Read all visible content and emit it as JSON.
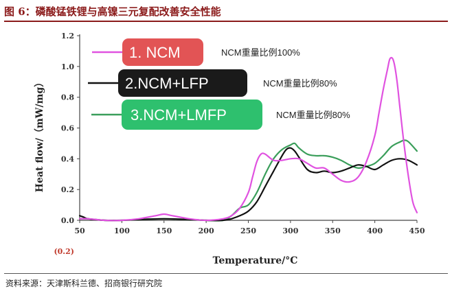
{
  "figure_title": "图 6：磷酸锰铁锂与高镍三元复配改善安全性能",
  "source": "资料来源：天津斯科兰德、招商银行研究院",
  "colors": {
    "title": "#8b1a1a",
    "series1": "#e052e0",
    "series2": "#111111",
    "series3": "#3a9e5a",
    "badge1": "#e25455",
    "badge2": "#1a1a1a",
    "badge3": "#2ec06e",
    "neg_tick": "#c0392b"
  },
  "chart_data": {
    "type": "line",
    "title": "",
    "xlabel": "Temperature/°C",
    "ylabel": "Heat flow/（mW/mg）",
    "xlim": [
      50,
      450
    ],
    "ylim": [
      0,
      1.2
    ],
    "x_ticks": [
      "50",
      "100",
      "150",
      "200",
      "250",
      "300",
      "350",
      "400",
      "450"
    ],
    "y_ticks": [
      "0.0",
      "0.2",
      "0.4",
      "0.6",
      "0.8",
      "1.0",
      "1.2"
    ],
    "extra_y_tick": "(0.2)",
    "series": [
      {
        "name": "1. NCM",
        "ratio_label": "NCM重量比例100%",
        "x": [
          50,
          60,
          80,
          100,
          120,
          140,
          150,
          160,
          180,
          200,
          220,
          230,
          240,
          250,
          255,
          260,
          265,
          270,
          280,
          290,
          300,
          310,
          320,
          330,
          340,
          350,
          360,
          370,
          380,
          390,
          400,
          405,
          410,
          415,
          418,
          422,
          426,
          430,
          435,
          440,
          445,
          450
        ],
        "values": [
          0.01,
          0.01,
          0.0,
          0.0,
          0.01,
          0.03,
          0.04,
          0.03,
          0.01,
          0.0,
          0.01,
          0.03,
          0.08,
          0.18,
          0.28,
          0.38,
          0.43,
          0.43,
          0.39,
          0.39,
          0.4,
          0.4,
          0.37,
          0.34,
          0.34,
          0.3,
          0.26,
          0.25,
          0.28,
          0.38,
          0.55,
          0.7,
          0.85,
          0.98,
          1.05,
          1.04,
          0.92,
          0.72,
          0.48,
          0.28,
          0.12,
          0.05
        ]
      },
      {
        "name": "2.NCM+LFP",
        "ratio_label": "NCM重量比例80%",
        "x": [
          50,
          55,
          60,
          80,
          100,
          150,
          200,
          220,
          230,
          240,
          250,
          260,
          270,
          280,
          290,
          295,
          300,
          305,
          310,
          320,
          330,
          340,
          350,
          360,
          370,
          380,
          390,
          400,
          410,
          420,
          430,
          440,
          450
        ],
        "values": [
          0.03,
          0.02,
          0.01,
          0.0,
          0.0,
          0.01,
          0.0,
          0.0,
          0.01,
          0.03,
          0.06,
          0.12,
          0.22,
          0.32,
          0.42,
          0.46,
          0.47,
          0.45,
          0.41,
          0.33,
          0.31,
          0.32,
          0.31,
          0.32,
          0.34,
          0.36,
          0.35,
          0.33,
          0.36,
          0.39,
          0.4,
          0.39,
          0.36
        ]
      },
      {
        "name": "3.NCM+LMFP",
        "ratio_label": "NCM重量比例80%",
        "x": [
          50,
          60,
          80,
          100,
          150,
          200,
          220,
          230,
          240,
          250,
          260,
          270,
          280,
          290,
          300,
          305,
          310,
          320,
          330,
          340,
          350,
          360,
          370,
          380,
          390,
          400,
          410,
          420,
          430,
          435,
          440,
          450
        ],
        "values": [
          0.01,
          0.01,
          0.0,
          0.0,
          0.01,
          0.0,
          0.0,
          0.03,
          0.08,
          0.1,
          0.18,
          0.3,
          0.4,
          0.46,
          0.49,
          0.5,
          0.47,
          0.43,
          0.42,
          0.42,
          0.41,
          0.39,
          0.36,
          0.34,
          0.35,
          0.37,
          0.42,
          0.48,
          0.51,
          0.52,
          0.51,
          0.45
        ]
      }
    ]
  }
}
